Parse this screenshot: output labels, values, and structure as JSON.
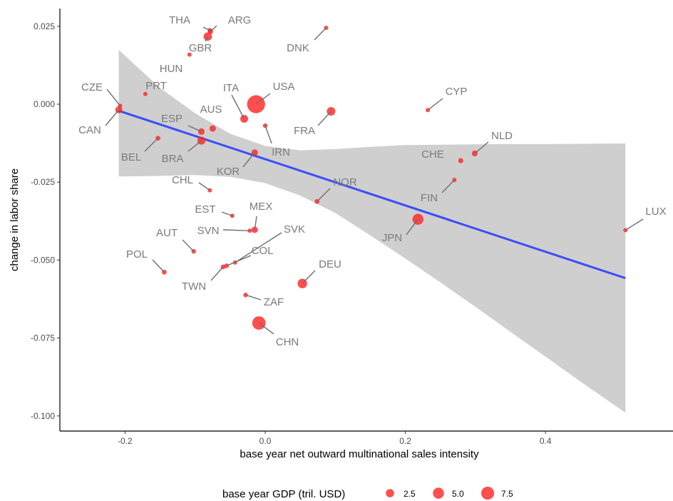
{
  "chart_data": {
    "type": "scatter",
    "title": "",
    "xlabel": "base year net outward multinational sales intensity",
    "ylabel": "change in labor share",
    "xlim": [
      -0.28,
      0.58
    ],
    "ylim": [
      -0.105,
      0.0305
    ],
    "x_ticks": [
      -0.2,
      0.0,
      0.2,
      0.4
    ],
    "x_tick_labels": [
      "-0.2",
      "0.0",
      "0.2",
      "0.4"
    ],
    "y_ticks": [
      0.025,
      0.0,
      -0.025,
      -0.05,
      -0.075,
      -0.1
    ],
    "y_tick_labels": [
      "0.025",
      "0.000",
      "-0.025",
      "-0.050",
      "-0.075",
      "-0.100"
    ],
    "grid": false,
    "point_color": "#ff2222",
    "fit_color": "#3a4ef5",
    "ribbon_color": "#bdbdbd",
    "label_color": "#7a7a7a",
    "legend": {
      "title": "base year GDP (tril. USD)",
      "position": "bottom",
      "labels": [
        "2.5",
        "5.0",
        "7.5"
      ],
      "sizes": [
        2.5,
        5.0,
        7.5
      ]
    },
    "points": [
      {
        "code": "THA",
        "x": -0.079,
        "y": 0.0237,
        "gdp": 0.4
      },
      {
        "code": "ARG",
        "x": -0.078,
        "y": 0.0233,
        "gdp": 0.6
      },
      {
        "code": "GBR",
        "x": -0.082,
        "y": 0.0217,
        "gdp": 2.6
      },
      {
        "code": "DNK",
        "x": 0.087,
        "y": 0.0245,
        "gdp": 0.3
      },
      {
        "code": "HUN",
        "x": -0.108,
        "y": 0.0159,
        "gdp": 0.2
      },
      {
        "code": "PRT",
        "x": -0.171,
        "y": 0.0033,
        "gdp": 0.2
      },
      {
        "code": "CZE",
        "x": -0.207,
        "y": -0.0005,
        "gdp": 0.2
      },
      {
        "code": "CAN",
        "x": -0.209,
        "y": -0.0018,
        "gdp": 1.6
      },
      {
        "code": "ITA",
        "x": -0.03,
        "y": -0.0047,
        "gdp": 2.1
      },
      {
        "code": "USA",
        "x": -0.013,
        "y": 0.0,
        "gdp": 16.0
      },
      {
        "code": "CYP",
        "x": 0.232,
        "y": -0.0019,
        "gdp": 0.02
      },
      {
        "code": "AUS",
        "x": -0.075,
        "y": -0.0078,
        "gdp": 1.2
      },
      {
        "code": "ESP",
        "x": -0.091,
        "y": -0.0088,
        "gdp": 1.3
      },
      {
        "code": "FRA",
        "x": 0.094,
        "y": -0.0023,
        "gdp": 2.7
      },
      {
        "code": "BEL",
        "x": -0.153,
        "y": -0.0109,
        "gdp": 0.5
      },
      {
        "code": "BRA",
        "x": -0.091,
        "y": -0.0117,
        "gdp": 2.2
      },
      {
        "code": "IRN",
        "x": 0.0,
        "y": -0.0069,
        "gdp": 0.4
      },
      {
        "code": "KOR",
        "x": -0.015,
        "y": -0.0155,
        "gdp": 1.2
      },
      {
        "code": "NLD",
        "x": 0.299,
        "y": -0.0158,
        "gdp": 0.9
      },
      {
        "code": "CHE",
        "x": 0.279,
        "y": -0.0181,
        "gdp": 0.6
      },
      {
        "code": "CHL",
        "x": -0.079,
        "y": -0.0276,
        "gdp": 0.3
      },
      {
        "code": "NOR",
        "x": 0.074,
        "y": -0.0312,
        "gdp": 0.5
      },
      {
        "code": "FIN",
        "x": 0.27,
        "y": -0.0243,
        "gdp": 0.3
      },
      {
        "code": "EST",
        "x": -0.047,
        "y": -0.0358,
        "gdp": 0.02
      },
      {
        "code": "MEX",
        "x": -0.015,
        "y": -0.0403,
        "gdp": 1.2
      },
      {
        "code": "SVN",
        "x": -0.022,
        "y": -0.0406,
        "gdp": 0.05
      },
      {
        "code": "LUX",
        "x": 0.514,
        "y": -0.0404,
        "gdp": 0.06
      },
      {
        "code": "JPN",
        "x": 0.218,
        "y": -0.0369,
        "gdp": 5.0
      },
      {
        "code": "AUT",
        "x": -0.102,
        "y": -0.0472,
        "gdp": 0.4
      },
      {
        "code": "SVK",
        "x": -0.043,
        "y": -0.0508,
        "gdp": 0.1
      },
      {
        "code": "COL",
        "x": -0.055,
        "y": -0.0518,
        "gdp": 0.4
      },
      {
        "code": "TWN",
        "x": -0.06,
        "y": -0.0522,
        "gdp": 0.5
      },
      {
        "code": "POL",
        "x": -0.144,
        "y": -0.0539,
        "gdp": 0.5
      },
      {
        "code": "DEU",
        "x": 0.053,
        "y": -0.0575,
        "gdp": 3.6
      },
      {
        "code": "ZAF",
        "x": -0.028,
        "y": -0.0612,
        "gdp": 0.4
      },
      {
        "code": "CHN",
        "x": -0.009,
        "y": -0.0702,
        "gdp": 8.2
      }
    ],
    "fit_line": {
      "x": [
        -0.209,
        0.514
      ],
      "y": [
        -0.0021,
        -0.0558
      ]
    },
    "confidence_band": {
      "x": [
        -0.209,
        -0.15,
        -0.1,
        -0.05,
        0.0,
        0.05,
        0.1,
        0.15,
        0.2,
        0.25,
        0.3,
        0.35,
        0.4,
        0.45,
        0.514
      ],
      "lower": [
        -0.0232,
        -0.023,
        -0.0227,
        -0.0233,
        -0.0253,
        -0.0293,
        -0.0349,
        -0.0421,
        -0.0495,
        -0.0572,
        -0.065,
        -0.073,
        -0.081,
        -0.089,
        -0.099
      ],
      "upper": [
        0.0174,
        0.0052,
        -0.0029,
        -0.0095,
        -0.0134,
        -0.0148,
        -0.0144,
        -0.0137,
        -0.0131,
        -0.013,
        -0.0129,
        -0.0128,
        -0.0128,
        -0.0127,
        -0.0126
      ]
    }
  }
}
